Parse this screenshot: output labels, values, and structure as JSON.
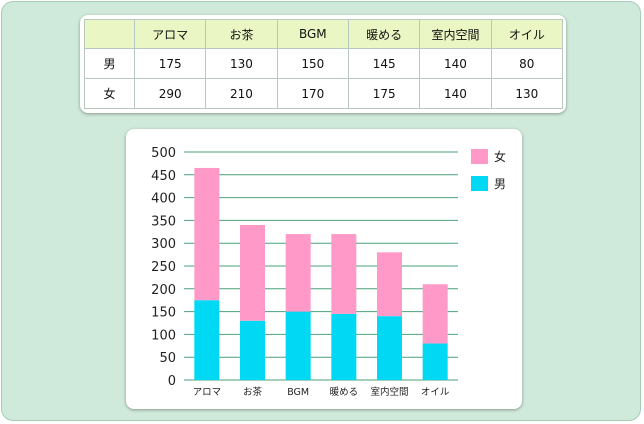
{
  "table": {
    "header": [
      "",
      "アロマ",
      "お茶",
      "BGM",
      "暖める",
      "室内空間",
      "オイル"
    ],
    "rows": [
      [
        "男",
        "175",
        "130",
        "150",
        "145",
        "140",
        "80"
      ],
      [
        "女",
        "290",
        "210",
        "170",
        "175",
        "140",
        "130"
      ]
    ]
  },
  "chart_data": {
    "type": "bar",
    "stacked": true,
    "categories": [
      "アロマ",
      "お茶",
      "BGM",
      "暖める",
      "室内空間",
      "オイル"
    ],
    "series": [
      {
        "name": "男",
        "values": [
          175,
          130,
          150,
          145,
          140,
          80
        ],
        "color": "#00d8f4"
      },
      {
        "name": "女",
        "values": [
          290,
          210,
          170,
          175,
          140,
          130
        ],
        "color": "#ff9ac8"
      }
    ],
    "ylim": [
      0,
      500
    ],
    "yticks": [
      0,
      50,
      100,
      150,
      200,
      250,
      300,
      350,
      400,
      450,
      500
    ],
    "grid": true,
    "legend": "top-right",
    "legend_order": [
      "女",
      "男"
    ],
    "title": "",
    "xlabel": "",
    "ylabel": ""
  },
  "colors": {
    "background": "#cfe9da",
    "table_header": "#eaf6c4",
    "gridline": "#4aa37a"
  }
}
